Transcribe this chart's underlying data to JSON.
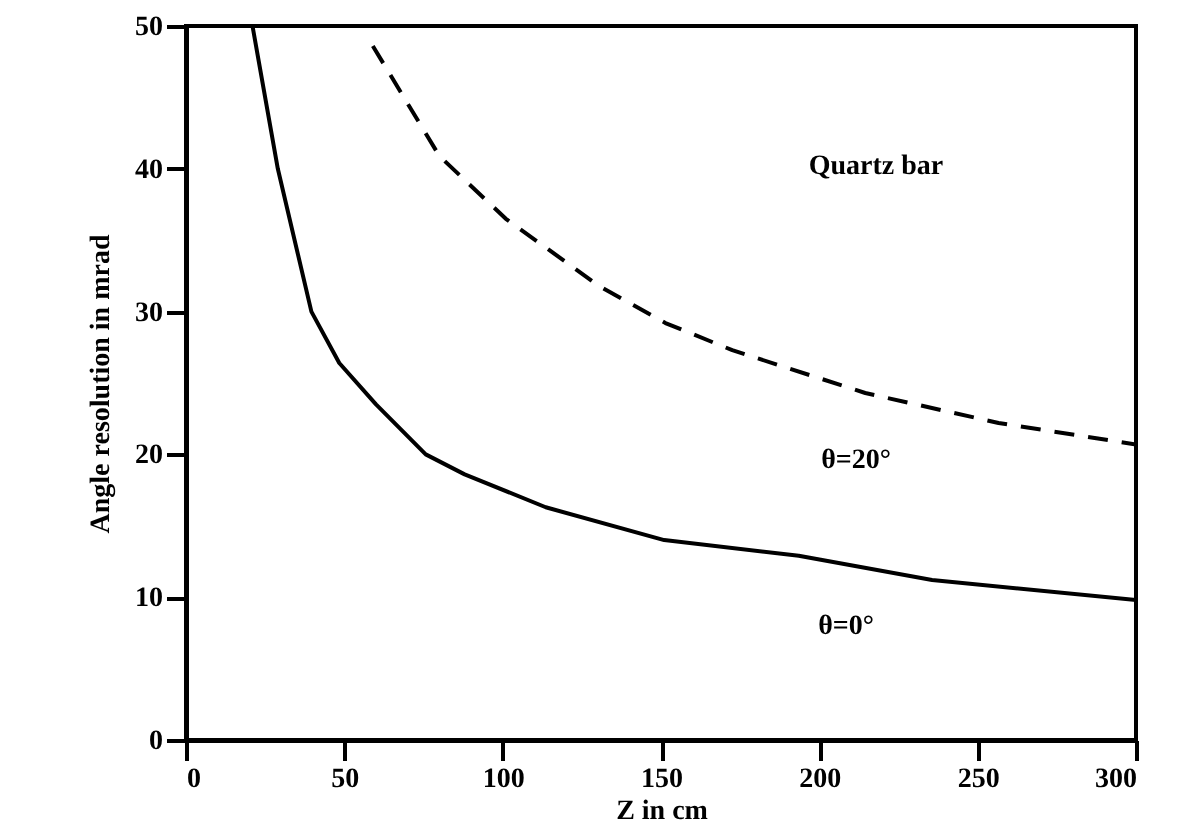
{
  "chart_data": {
    "type": "line",
    "xlabel": "Z in cm",
    "ylabel": "Angle resolution in mrad",
    "xlim": [
      0,
      300
    ],
    "ylim": [
      0,
      50
    ],
    "xticks": [
      0,
      50,
      100,
      150,
      200,
      250,
      300
    ],
    "yticks": [
      0,
      10,
      20,
      30,
      40,
      50
    ],
    "annotations": [
      "Quartz bar",
      "θ=20°",
      "θ=0°"
    ],
    "series": [
      {
        "color": "#000000",
        "line_style": "solid",
        "x": [
          21,
          29,
          39.6,
          48.4,
          60,
          75.7,
          88,
          113.6,
          151,
          193.5,
          235.6,
          300
        ],
        "values": [
          50,
          40,
          30,
          26.4,
          23.5,
          20,
          18.6,
          16.3,
          14,
          12.9,
          11.2,
          9.8
        ]
      },
      {
        "color": "#000000",
        "line_style": "dashed",
        "x": [
          59,
          80,
          101,
          130.4,
          151.4,
          172.5,
          214.5,
          256.6,
          300
        ],
        "values": [
          48.6,
          40.9,
          36.5,
          31.8,
          29.2,
          27.3,
          24.3,
          22.2,
          20.7
        ]
      }
    ]
  }
}
